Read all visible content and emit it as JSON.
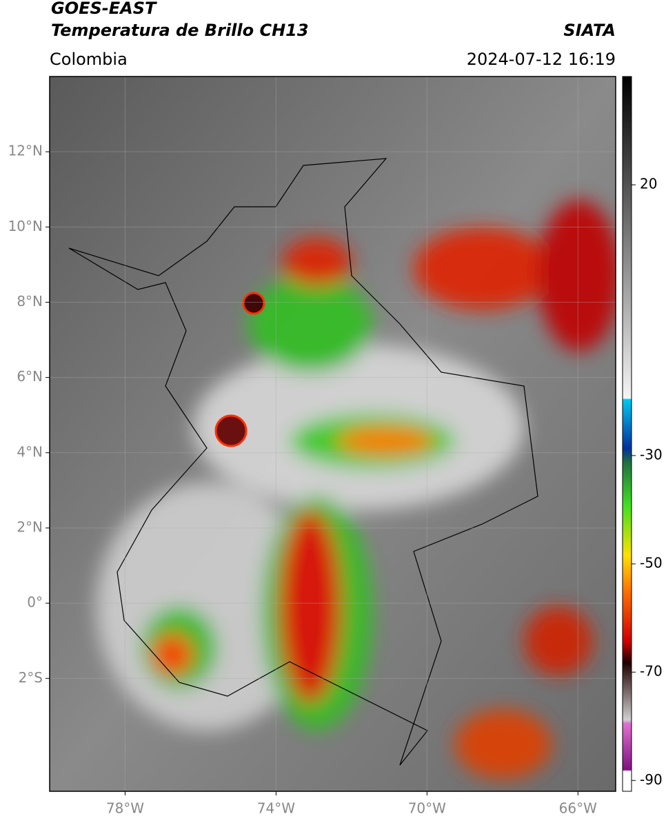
{
  "header": {
    "title": "GOES-EAST",
    "subtitle": "Temperatura de Brillo CH13",
    "source": "SIATA",
    "region": "Colombia",
    "timestamp": "2024-07-12 16:19"
  },
  "map": {
    "xlim": [
      -80,
      -65
    ],
    "ylim": [
      -5,
      14
    ],
    "xticks": [
      {
        "value": -78,
        "label": "78°W"
      },
      {
        "value": -74,
        "label": "74°W"
      },
      {
        "value": -70,
        "label": "70°W"
      },
      {
        "value": -66,
        "label": "66°W"
      }
    ],
    "yticks": [
      {
        "value": 12,
        "label": "12°N"
      },
      {
        "value": 10,
        "label": "10°N"
      },
      {
        "value": 8,
        "label": "8°N"
      },
      {
        "value": 6,
        "label": "6°N"
      },
      {
        "value": 4,
        "label": "4°N"
      },
      {
        "value": 2,
        "label": "2°N"
      },
      {
        "value": 0,
        "label": "0°"
      },
      {
        "value": -2,
        "label": "2°S"
      }
    ],
    "grid": true
  },
  "colorbar": {
    "clim": [
      -92,
      40
    ],
    "ticks": [
      20,
      -30,
      -50,
      -70,
      -90
    ]
  }
}
